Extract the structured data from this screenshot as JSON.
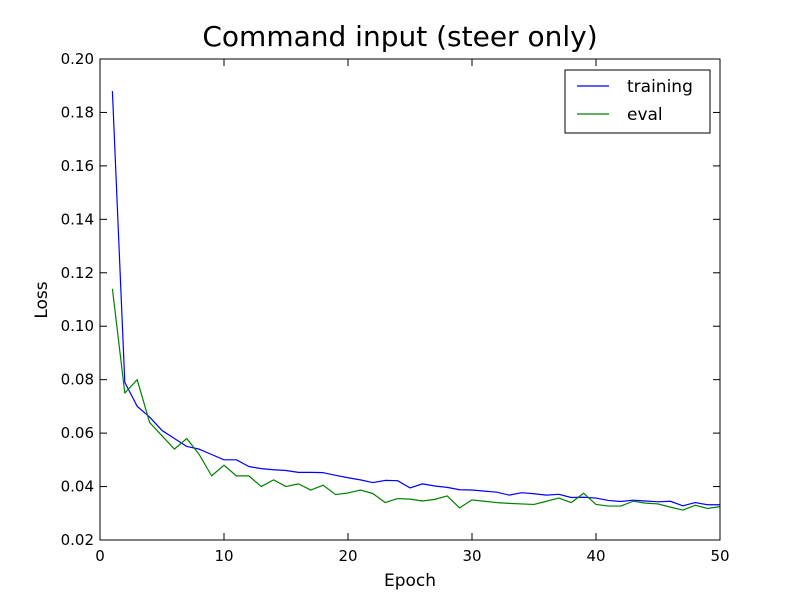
{
  "chart_data": {
    "type": "line",
    "title": "Command input (steer only)",
    "xlabel": "Epoch",
    "ylabel": "Loss",
    "xlim": [
      0,
      50
    ],
    "ylim": [
      0.02,
      0.2
    ],
    "xticks": [
      "0",
      "10",
      "20",
      "30",
      "40",
      "50"
    ],
    "yticks": [
      "0.02",
      "0.04",
      "0.06",
      "0.08",
      "0.10",
      "0.12",
      "0.14",
      "0.16",
      "0.18",
      "0.20"
    ],
    "grid": false,
    "legend_position": "top-right",
    "x": [
      1,
      2,
      3,
      4,
      5,
      6,
      7,
      8,
      9,
      10,
      11,
      12,
      13,
      14,
      15,
      16,
      17,
      18,
      19,
      20,
      21,
      22,
      23,
      24,
      25,
      26,
      27,
      28,
      29,
      30,
      31,
      32,
      33,
      34,
      35,
      36,
      37,
      38,
      39,
      40,
      41,
      42,
      43,
      44,
      45,
      46,
      47,
      48,
      49,
      50
    ],
    "series": [
      {
        "name": "training",
        "color": "#0000ff",
        "values": [
          0.188,
          0.079,
          0.07,
          0.066,
          0.061,
          0.058,
          0.055,
          0.054,
          0.052,
          0.05,
          0.05,
          0.0475,
          0.0467,
          0.0463,
          0.046,
          0.0453,
          0.0453,
          0.0452,
          0.0442,
          0.0433,
          0.0425,
          0.0415,
          0.0423,
          0.0422,
          0.0395,
          0.041,
          0.0402,
          0.0397,
          0.0388,
          0.0387,
          0.0383,
          0.0379,
          0.0368,
          0.0377,
          0.0373,
          0.0368,
          0.0371,
          0.0359,
          0.036,
          0.0357,
          0.0348,
          0.0344,
          0.0349,
          0.0346,
          0.0343,
          0.0345,
          0.0328,
          0.034,
          0.0332,
          0.0332
        ]
      },
      {
        "name": "eval",
        "color": "#008000",
        "values": [
          0.114,
          0.075,
          0.08,
          0.064,
          0.059,
          0.054,
          0.058,
          0.052,
          0.044,
          0.048,
          0.044,
          0.044,
          0.04,
          0.0425,
          0.04,
          0.041,
          0.0387,
          0.0405,
          0.037,
          0.0376,
          0.0387,
          0.0374,
          0.034,
          0.0355,
          0.0353,
          0.0346,
          0.0352,
          0.0365,
          0.032,
          0.035,
          0.0345,
          0.034,
          0.0337,
          0.0335,
          0.0333,
          0.0345,
          0.0357,
          0.034,
          0.0375,
          0.0333,
          0.0327,
          0.0327,
          0.0345,
          0.0338,
          0.0335,
          0.0323,
          0.0312,
          0.033,
          0.0318,
          0.0325
        ]
      }
    ]
  }
}
